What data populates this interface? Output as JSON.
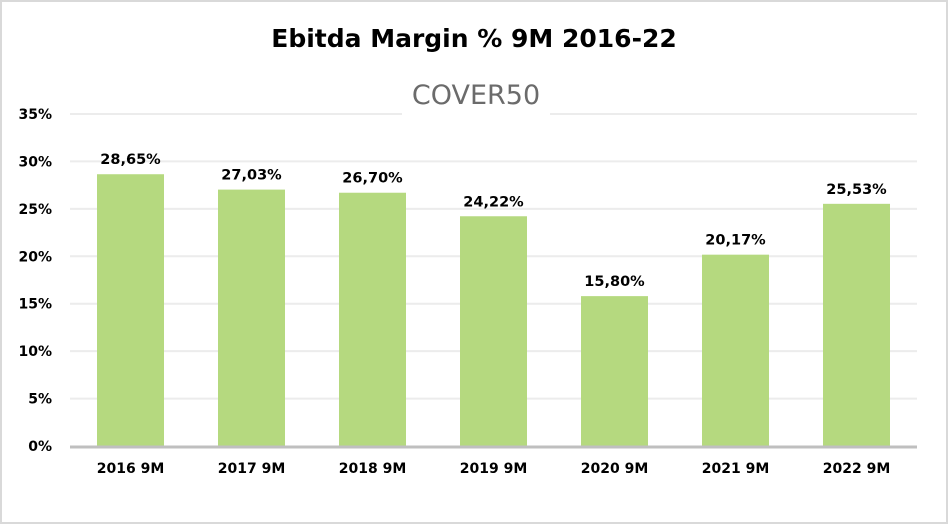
{
  "chart_data": {
    "type": "bar",
    "title": "Ebitda Margin % 9M 2016-22",
    "watermark": "COVER50",
    "categories": [
      "2016 9M",
      "2017 9M",
      "2018 9M",
      "2019 9M",
      "2020 9M",
      "2021 9M",
      "2022 9M"
    ],
    "values": [
      28.65,
      27.03,
      26.7,
      24.22,
      15.8,
      20.17,
      25.53
    ],
    "data_labels": [
      "28,65%",
      "27,03%",
      "26,70%",
      "24,22%",
      "15,80%",
      "20,17%",
      "25,53%"
    ],
    "yticks": [
      0,
      5,
      10,
      15,
      20,
      25,
      30,
      35
    ],
    "ytick_labels": [
      "0%",
      "5%",
      "10%",
      "15%",
      "20%",
      "25%",
      "30%",
      "35%"
    ],
    "ylim": [
      0,
      35
    ],
    "xlabel": "",
    "ylabel": "",
    "grid": true,
    "legend": "none",
    "bar_color": "#b5d97f",
    "grid_color": "#ececec",
    "axis_color": "#bfbfbf"
  }
}
